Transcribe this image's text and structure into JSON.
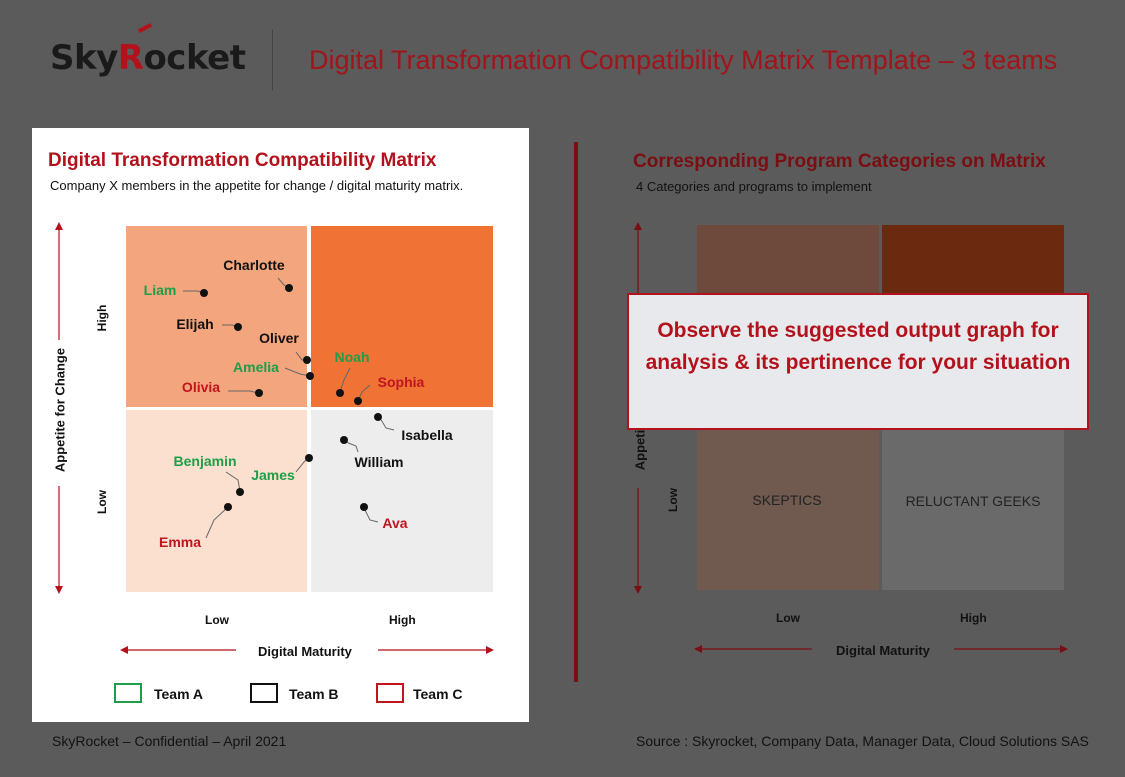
{
  "header": {
    "logo_main": "Sky",
    "logo_r": "R",
    "logo_rest": "ocket",
    "title": "Digital Transformation Compatibility Matrix Template – 3 teams"
  },
  "left": {
    "title": "Digital Transformation Compatibility Matrix",
    "subtitle": "Company X members in the appetite for change / digital maturity matrix.",
    "y_axis": "Appetite for Change",
    "y_high": "High",
    "y_low": "Low",
    "x_axis": "Digital Maturity",
    "x_low": "Low",
    "x_high": "High",
    "quadrant_colors": {
      "top_left": "#f3a57d",
      "top_right": "#f07235",
      "bottom_left": "#fbdfcf",
      "bottom_right": "#ededed"
    },
    "legend": [
      {
        "label": "Team A",
        "color": "#1f9e4a"
      },
      {
        "label": "Team B",
        "color": "#111111"
      },
      {
        "label": "Team C",
        "color": "#c0141e"
      }
    ],
    "members": [
      {
        "name": "Charlotte",
        "team": "B"
      },
      {
        "name": "Liam",
        "team": "A"
      },
      {
        "name": "Elijah",
        "team": "B"
      },
      {
        "name": "Oliver",
        "team": "B"
      },
      {
        "name": "Amelia",
        "team": "A"
      },
      {
        "name": "Noah",
        "team": "A"
      },
      {
        "name": "Olivia",
        "team": "C"
      },
      {
        "name": "Sophia",
        "team": "C"
      },
      {
        "name": "Isabella",
        "team": "B"
      },
      {
        "name": "William",
        "team": "B"
      },
      {
        "name": "Benjamin",
        "team": "A"
      },
      {
        "name": "James",
        "team": "A"
      },
      {
        "name": "Emma",
        "team": "C"
      },
      {
        "name": "Ava",
        "team": "C"
      }
    ],
    "team_colors": {
      "A": "#1f9e4a",
      "B": "#111111",
      "C": "#c0141e"
    }
  },
  "right": {
    "title": "Corresponding Program Categories on Matrix",
    "subtitle": "4 Categories and programs to implement",
    "y_axis_partial": "Appeti",
    "y_low": "Low",
    "x_axis": "Digital Maturity",
    "x_low": "Low",
    "x_high": "High",
    "quadrants": {
      "bottom_left": "SKEPTICS",
      "bottom_right": "RELUCTANT GEEKS"
    },
    "quadrant_colors": {
      "top_left": "#6e4a3c",
      "top_right": "#6b2a10",
      "bottom_left": "#705a50",
      "bottom_right": "#6a6a6a"
    },
    "callout": "Observe the suggested output graph for analysis & its pertinence for your situation"
  },
  "footer": {
    "left": "SkyRocket – Confidential – April 2021",
    "right": "Source : Skyrocket, Company Data, Manager Data, Cloud Solutions SAS"
  }
}
